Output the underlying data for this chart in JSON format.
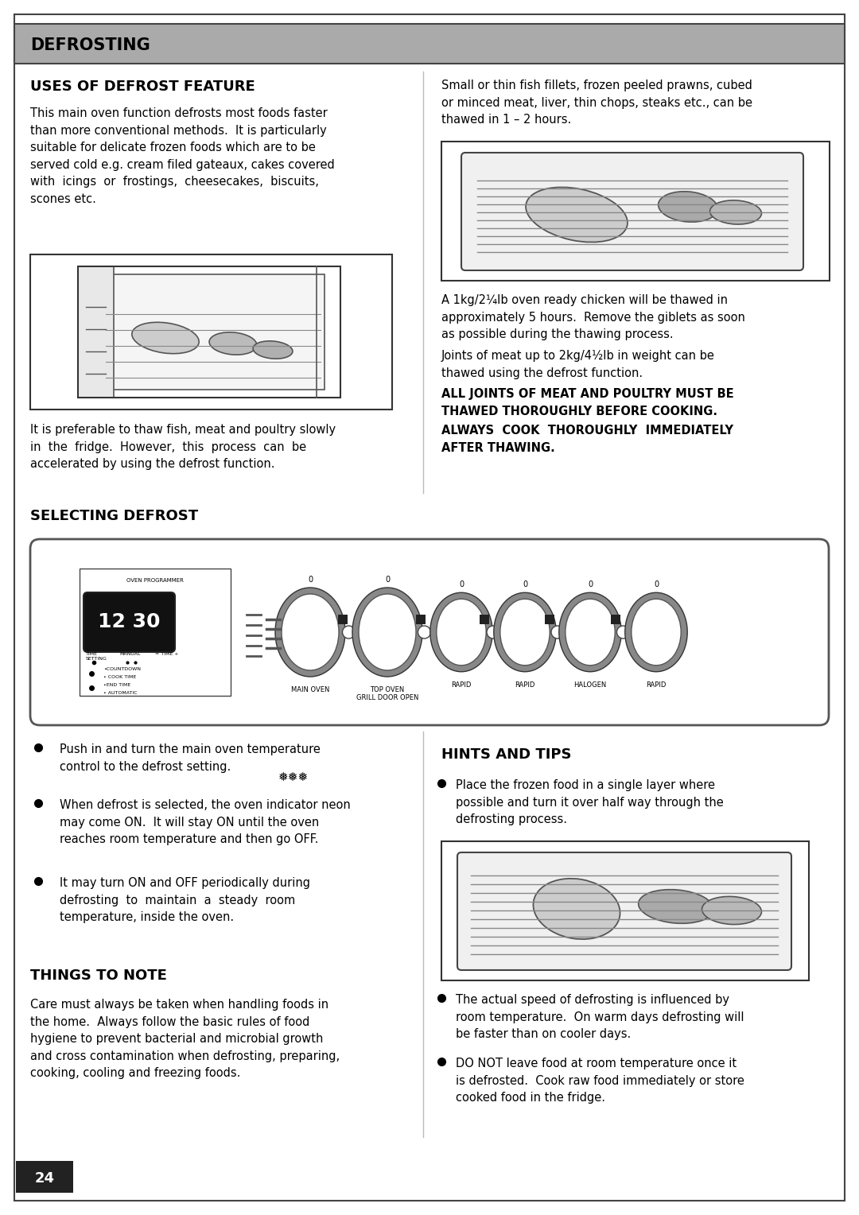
{
  "page_bg": "#ffffff",
  "header_bg": "#999999",
  "header_text": "DEFROSTING",
  "section1_title": "USES OF DEFROST FEATURE",
  "section1_body": "This main oven function defrosts most foods faster\nthan more conventional methods.  It is particularly\nsuitable for delicate frozen foods which are to be\nserved cold e.g. cream filed gateaux, cakes covered\nwith  icings  or  frostings,  cheesecakes,  biscuits,\nscones etc.",
  "section1_caption": "It is preferable to thaw fish, meat and poultry slowly\nin  the  fridge.  However,  this  process  can  be\naccelerated by using the defrost function.",
  "right_col_text1": "Small or thin fish fillets, frozen peeled prawns, cubed\nor minced meat, liver, thin chops, steaks etc., can be\nthawed in 1 – 2 hours.",
  "right_col_text2": "A 1kg/2¼Ib oven ready chicken will be thawed in\napproximately 5 hours.  Remove the giblets as soon\nas possible during the thawing process.",
  "right_col_text3": "Joints of meat up to 2kg/4½Ib in weight can be\nthawed using the defrost function.",
  "right_col_bold1": "ALL JOINTS OF MEAT AND POULTRY MUST BE\nTHAWED THOROUGHLY BEFORE COOKING.",
  "right_col_bold2": "ALWAYS  COOK  THOROUGHLY  IMMEDIATELY\nAFTER THAWING.",
  "section2_title": "SELECTING DEFROST",
  "bullet1a": "Push in and turn the main oven temperature",
  "bullet1b": "control to the defrost setting.",
  "bullet2": "When defrost is selected, the oven indicator neon\nmay come ON.  It will stay ON until the oven\nreaches room temperature and then go OFF.",
  "bullet3": "It may turn ON and OFF periodically during\ndefrosting  to  maintain  a  steady  room\ntemperature, inside the oven.",
  "section3_title": "THINGS TO NOTE",
  "section3_body": "Care must always be taken when handling foods in\nthe home.  Always follow the basic rules of food\nhygiene to prevent bacterial and microbial growth\nand cross contamination when defrosting, preparing,\ncooking, cooling and freezing foods.",
  "hints_title": "HINTS AND TIPS",
  "hint_bullet1": "Place the frozen food in a single layer where\npossible and turn it over half way through the\ndefrosting process.",
  "hint_bullet2": "The actual speed of defrosting is influenced by\nroom temperature.  On warm days defrosting will\nbe faster than on cooler days.",
  "hint_bullet3": "DO NOT leave food at room temperature once it\nis defrosted.  Cook raw food immediately or store\ncooked food in the fridge.",
  "page_number": "24"
}
